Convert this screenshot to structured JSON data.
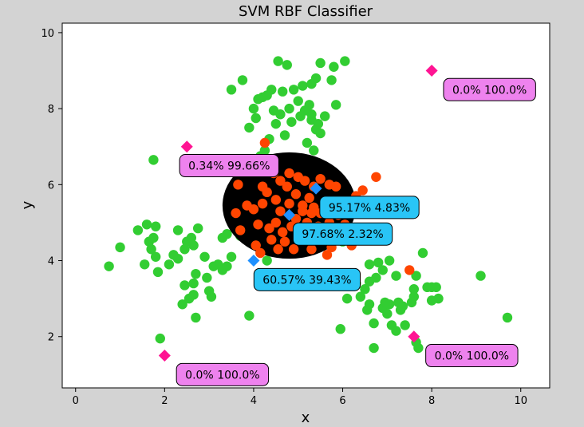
{
  "chart_data": {
    "type": "scatter",
    "title": "SVM RBF Classifier",
    "xlabel": "x",
    "ylabel": "y",
    "xlim": [
      -0.3,
      10.65
    ],
    "ylim": [
      0.65,
      10.25
    ],
    "xticks": [
      0,
      2,
      4,
      6,
      8,
      10
    ],
    "yticks": [
      2,
      4,
      6,
      8,
      10
    ],
    "colors": {
      "figure_bg": "#d3d3d3",
      "axes_bg": "#ffffff",
      "green_points": "#32cd32",
      "orange_points": "#ff4500",
      "boundary_region": "#000000",
      "query_pink": "#ff1493",
      "query_blue": "#1e90ff",
      "label_pink": "#ee82ee",
      "label_blue": "#29c5f6"
    },
    "boundary": {
      "center": [
        4.8,
        5.45
      ],
      "rx": 1.5,
      "ry": 1.4
    },
    "series": [
      {
        "color_key": "green",
        "points": [
          [
            0.75,
            3.85
          ],
          [
            1.0,
            4.35
          ],
          [
            1.4,
            4.8
          ],
          [
            1.55,
            3.9
          ],
          [
            1.6,
            4.95
          ],
          [
            1.65,
            4.5
          ],
          [
            1.7,
            4.3
          ],
          [
            1.75,
            4.6
          ],
          [
            1.75,
            6.65
          ],
          [
            1.8,
            4.9
          ],
          [
            1.8,
            4.1
          ],
          [
            1.85,
            3.7
          ],
          [
            1.9,
            1.95
          ],
          [
            2.1,
            3.9
          ],
          [
            2.2,
            4.15
          ],
          [
            2.3,
            4.8
          ],
          [
            2.3,
            4.05
          ],
          [
            2.4,
            2.85
          ],
          [
            2.45,
            4.3
          ],
          [
            2.45,
            3.35
          ],
          [
            2.5,
            4.5
          ],
          [
            2.55,
            3.0
          ],
          [
            2.6,
            4.6
          ],
          [
            2.65,
            4.4
          ],
          [
            2.65,
            3.1
          ],
          [
            2.65,
            3.4
          ],
          [
            2.7,
            2.5
          ],
          [
            2.7,
            3.65
          ],
          [
            2.75,
            4.85
          ],
          [
            2.9,
            4.1
          ],
          [
            2.95,
            3.55
          ],
          [
            3.0,
            3.2
          ],
          [
            3.05,
            3.05
          ],
          [
            3.1,
            3.85
          ],
          [
            3.2,
            3.9
          ],
          [
            3.3,
            3.75
          ],
          [
            3.3,
            4.6
          ],
          [
            3.4,
            4.7
          ],
          [
            3.4,
            3.85
          ],
          [
            3.5,
            4.1
          ],
          [
            3.5,
            8.5
          ],
          [
            3.6,
            5.0
          ],
          [
            3.7,
            4.65
          ],
          [
            3.75,
            8.75
          ],
          [
            3.9,
            2.55
          ],
          [
            3.9,
            7.5
          ],
          [
            4.0,
            8.0
          ],
          [
            4.05,
            7.75
          ],
          [
            4.1,
            8.25
          ],
          [
            4.15,
            6.75
          ],
          [
            4.2,
            8.3
          ],
          [
            4.25,
            6.9
          ],
          [
            4.3,
            8.35
          ],
          [
            4.3,
            4.0
          ],
          [
            4.35,
            7.2
          ],
          [
            4.4,
            8.5
          ],
          [
            4.45,
            7.95
          ],
          [
            4.5,
            7.6
          ],
          [
            4.55,
            9.25
          ],
          [
            4.6,
            7.85
          ],
          [
            4.65,
            8.45
          ],
          [
            4.7,
            7.3
          ],
          [
            4.75,
            9.15
          ],
          [
            4.8,
            8.0
          ],
          [
            4.85,
            7.65
          ],
          [
            4.9,
            8.5
          ],
          [
            5.0,
            8.2
          ],
          [
            5.05,
            7.8
          ],
          [
            5.1,
            8.6
          ],
          [
            5.1,
            6.65
          ],
          [
            5.15,
            7.95
          ],
          [
            5.2,
            7.1
          ],
          [
            5.25,
            8.1
          ],
          [
            5.3,
            7.7
          ],
          [
            5.3,
            7.85
          ],
          [
            5.3,
            8.65
          ],
          [
            5.35,
            6.9
          ],
          [
            5.4,
            8.8
          ],
          [
            5.4,
            7.45
          ],
          [
            5.45,
            7.6
          ],
          [
            5.5,
            7.35
          ],
          [
            5.5,
            9.2
          ],
          [
            5.55,
            3.35
          ],
          [
            5.6,
            7.8
          ],
          [
            5.75,
            8.75
          ],
          [
            5.8,
            9.1
          ],
          [
            5.85,
            8.1
          ],
          [
            5.95,
            2.2
          ],
          [
            6.0,
            4.5
          ],
          [
            6.05,
            9.25
          ],
          [
            6.1,
            3.0
          ],
          [
            6.3,
            3.4
          ],
          [
            6.4,
            3.05
          ],
          [
            6.5,
            3.25
          ],
          [
            6.55,
            2.7
          ],
          [
            6.6,
            2.85
          ],
          [
            6.6,
            3.9
          ],
          [
            6.6,
            3.45
          ],
          [
            6.7,
            2.35
          ],
          [
            6.7,
            1.7
          ],
          [
            6.75,
            3.55
          ],
          [
            6.8,
            3.95
          ],
          [
            6.9,
            3.75
          ],
          [
            6.9,
            2.75
          ],
          [
            6.95,
            2.9
          ],
          [
            7.0,
            2.6
          ],
          [
            7.05,
            4.0
          ],
          [
            7.05,
            2.85
          ],
          [
            7.1,
            2.3
          ],
          [
            7.2,
            3.6
          ],
          [
            7.2,
            2.15
          ],
          [
            7.25,
            2.9
          ],
          [
            7.3,
            2.7
          ],
          [
            7.35,
            2.8
          ],
          [
            7.4,
            2.3
          ],
          [
            7.55,
            2.9
          ],
          [
            7.6,
            3.05
          ],
          [
            7.6,
            3.25
          ],
          [
            7.65,
            3.6
          ],
          [
            7.7,
            1.7
          ],
          [
            7.65,
            1.85
          ],
          [
            7.8,
            4.2
          ],
          [
            7.9,
            3.3
          ],
          [
            8.0,
            2.95
          ],
          [
            8.0,
            3.3
          ],
          [
            8.1,
            3.3
          ],
          [
            8.15,
            3.0
          ],
          [
            9.1,
            3.6
          ],
          [
            9.7,
            2.5
          ]
        ]
      },
      {
        "color_key": "orange",
        "points": [
          [
            3.6,
            5.25
          ],
          [
            3.65,
            6.0
          ],
          [
            3.7,
            4.8
          ],
          [
            3.85,
            5.45
          ],
          [
            4.0,
            5.35
          ],
          [
            4.05,
            4.4
          ],
          [
            4.1,
            4.95
          ],
          [
            4.15,
            4.2
          ],
          [
            4.2,
            5.95
          ],
          [
            4.2,
            5.5
          ],
          [
            4.25,
            7.1
          ],
          [
            4.25,
            6.4
          ],
          [
            4.3,
            5.8
          ],
          [
            4.35,
            4.85
          ],
          [
            4.4,
            4.55
          ],
          [
            4.45,
            6.3
          ],
          [
            4.5,
            5.0
          ],
          [
            4.5,
            5.6
          ],
          [
            4.55,
            4.3
          ],
          [
            4.6,
            6.1
          ],
          [
            4.6,
            5.3
          ],
          [
            4.65,
            4.75
          ],
          [
            4.7,
            4.5
          ],
          [
            4.75,
            5.95
          ],
          [
            4.8,
            6.3
          ],
          [
            4.8,
            5.5
          ],
          [
            4.85,
            4.9
          ],
          [
            4.9,
            4.3
          ],
          [
            4.95,
            5.1
          ],
          [
            4.95,
            5.75
          ],
          [
            5.0,
            6.2
          ],
          [
            5.05,
            4.6
          ],
          [
            5.1,
            5.45
          ],
          [
            5.1,
            5.3
          ],
          [
            5.15,
            6.1
          ],
          [
            5.2,
            4.8
          ],
          [
            5.2,
            5.0
          ],
          [
            5.25,
            5.65
          ],
          [
            5.3,
            4.3
          ],
          [
            5.3,
            5.25
          ],
          [
            5.35,
            5.95
          ],
          [
            5.35,
            5.4
          ],
          [
            5.4,
            4.55
          ],
          [
            5.45,
            4.9
          ],
          [
            5.5,
            5.25
          ],
          [
            5.5,
            6.15
          ],
          [
            5.55,
            4.7
          ],
          [
            5.6,
            5.5
          ],
          [
            5.65,
            4.15
          ],
          [
            5.7,
            6.0
          ],
          [
            5.7,
            5.0
          ],
          [
            5.75,
            4.35
          ],
          [
            5.8,
            5.4
          ],
          [
            5.85,
            5.95
          ],
          [
            5.9,
            5.2
          ],
          [
            5.95,
            4.65
          ],
          [
            6.0,
            5.55
          ],
          [
            6.05,
            4.95
          ],
          [
            6.1,
            5.3
          ],
          [
            6.2,
            4.4
          ],
          [
            6.3,
            5.7
          ],
          [
            6.45,
            5.85
          ],
          [
            6.5,
            4.65
          ],
          [
            6.6,
            5.5
          ],
          [
            6.75,
            6.2
          ],
          [
            7.5,
            3.75
          ]
        ]
      }
    ],
    "query_points": [
      {
        "x": 2.5,
        "y": 7.0,
        "color_key": "pink",
        "label": "0.34% 99.66%",
        "label_at": [
          3.45,
          6.5
        ]
      },
      {
        "x": 8.0,
        "y": 9.0,
        "color_key": "pink",
        "label": "0.0% 100.0%",
        "label_at": [
          9.3,
          8.5
        ]
      },
      {
        "x": 5.4,
        "y": 5.9,
        "color_key": "blue",
        "label": "95.17% 4.83%",
        "label_at": [
          6.6,
          5.4
        ]
      },
      {
        "x": 4.8,
        "y": 5.2,
        "color_key": "blue",
        "label": "97.68% 2.32%",
        "label_at": [
          6.0,
          4.7
        ]
      },
      {
        "x": 4.0,
        "y": 4.0,
        "color_key": "blue",
        "label": "60.57% 39.43%",
        "label_at": [
          5.2,
          3.5
        ]
      },
      {
        "x": 2.0,
        "y": 1.5,
        "color_key": "pink",
        "label": "0.0% 100.0%",
        "label_at": [
          3.3,
          1.0
        ]
      },
      {
        "x": 7.6,
        "y": 2.0,
        "color_key": "pink",
        "label": "0.0% 100.0%",
        "label_at": [
          8.9,
          1.5
        ]
      }
    ]
  }
}
